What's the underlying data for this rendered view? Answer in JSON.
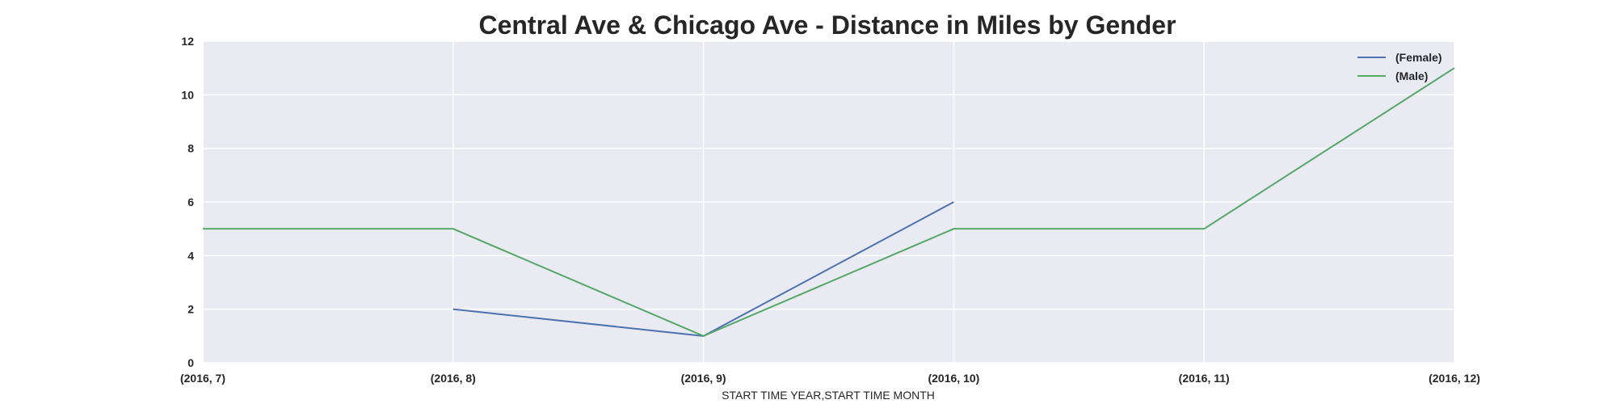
{
  "chart_data": {
    "type": "line",
    "title": "Central Ave & Chicago Ave - Distance in Miles by Gender",
    "xlabel": "START TIME YEAR,START TIME MONTH",
    "ylabel": "",
    "categories": [
      "(2016, 7)",
      "(2016, 8)",
      "(2016, 9)",
      "(2016, 10)",
      "(2016, 11)",
      "(2016, 12)"
    ],
    "ylim": [
      0,
      12
    ],
    "yticks": [
      0,
      2,
      4,
      6,
      8,
      10,
      12
    ],
    "grid": true,
    "legend_position": "top-right",
    "series": [
      {
        "name": "(Female)",
        "color": "#4c72b0",
        "values": [
          null,
          2,
          1,
          6,
          null,
          null
        ]
      },
      {
        "name": "(Male)",
        "color": "#55a868",
        "values": [
          5,
          5,
          1,
          5,
          5,
          11
        ]
      }
    ],
    "plot_background": "#eaeaf2",
    "grid_color": "#ffffff"
  }
}
